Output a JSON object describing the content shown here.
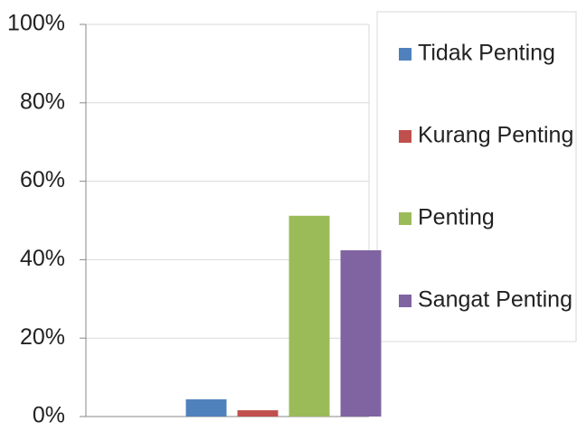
{
  "chart_data": {
    "type": "bar",
    "categories": [
      null
    ],
    "series": [
      {
        "name": "Tidak Penting",
        "color": "#4f81bd",
        "values": [
          4.4
        ]
      },
      {
        "name": "Kurang Penting",
        "color": "#c0504d",
        "values": [
          1.6
        ]
      },
      {
        "name": "Penting",
        "color": "#9bbb59",
        "values": [
          51.2
        ]
      },
      {
        "name": "Sangat Penting",
        "color": "#8064a2",
        "values": [
          42.4
        ]
      }
    ],
    "ylim": [
      0,
      100
    ],
    "yticks": [
      {
        "value": 0,
        "label": "0%"
      },
      {
        "value": 20,
        "label": "20%"
      },
      {
        "value": 40,
        "label": "40%"
      },
      {
        "value": 60,
        "label": "60%"
      },
      {
        "value": 80,
        "label": "80%"
      },
      {
        "value": 100,
        "label": "100%"
      }
    ],
    "grid": true,
    "legend": "right"
  }
}
